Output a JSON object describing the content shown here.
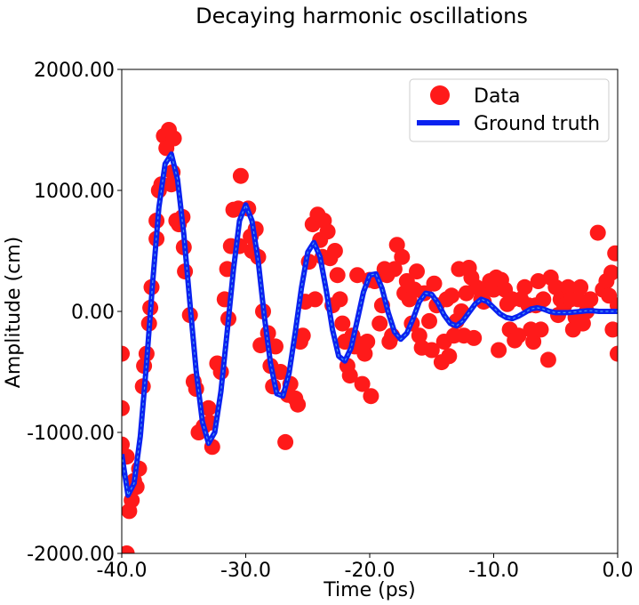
{
  "chart_data": {
    "type": "scatter",
    "title": "Decaying harmonic oscillations",
    "xlabel": "Time (ps)",
    "ylabel": "Amplitude (cm)",
    "xlim": [
      -40,
      0
    ],
    "ylim": [
      -2000,
      2000
    ],
    "xticks": [
      -40,
      -30,
      -20,
      -10,
      0
    ],
    "xtick_labels": [
      "-40.0",
      "-30.0",
      "-20.0",
      "-10.0",
      "0.0"
    ],
    "yticks": [
      -2000,
      -1000,
      0,
      1000,
      2000
    ],
    "ytick_labels": [
      "-2000.00",
      "-1000.00",
      "0.00",
      "1000.00",
      "2000.00"
    ],
    "legend_position": "top-right",
    "colors": {
      "data": "#ff1a1a",
      "ground_truth": "#0a22f0",
      "ground_truth_inner": "#4a9cf0"
    },
    "series": [
      {
        "name": "Data",
        "kind": "markers",
        "points": [
          [
            -40.0,
            -350
          ],
          [
            -40.0,
            -800
          ],
          [
            -40.0,
            -1100
          ],
          [
            -39.6,
            -1200
          ],
          [
            -39.6,
            -2000
          ],
          [
            -39.4,
            -1650
          ],
          [
            -39.2,
            -1560
          ],
          [
            -39.0,
            -1400
          ],
          [
            -38.8,
            -1450
          ],
          [
            -38.6,
            -1300
          ],
          [
            -38.3,
            -620
          ],
          [
            -38.2,
            -450
          ],
          [
            -38.0,
            -350
          ],
          [
            -37.8,
            -100
          ],
          [
            -37.7,
            30
          ],
          [
            -37.6,
            200
          ],
          [
            -37.2,
            600
          ],
          [
            -37.2,
            750
          ],
          [
            -37.0,
            1000
          ],
          [
            -36.8,
            1050
          ],
          [
            -36.6,
            1450
          ],
          [
            -36.4,
            1350
          ],
          [
            -36.2,
            1500
          ],
          [
            -36.0,
            1050
          ],
          [
            -35.8,
            1430
          ],
          [
            -35.9,
            1150
          ],
          [
            -35.6,
            750
          ],
          [
            -35.4,
            720
          ],
          [
            -35.1,
            780
          ],
          [
            -35.0,
            530
          ],
          [
            -34.9,
            330
          ],
          [
            -34.5,
            -30
          ],
          [
            -34.2,
            -580
          ],
          [
            -34.0,
            -640
          ],
          [
            -33.8,
            -1000
          ],
          [
            -33.4,
            -950
          ],
          [
            -33.0,
            -800
          ],
          [
            -32.9,
            -920
          ],
          [
            -32.7,
            -1120
          ],
          [
            -32.3,
            -430
          ],
          [
            -32.0,
            -500
          ],
          [
            -31.7,
            100
          ],
          [
            -31.5,
            350
          ],
          [
            -31.4,
            -60
          ],
          [
            -31.2,
            540
          ],
          [
            -31.0,
            840
          ],
          [
            -30.6,
            850
          ],
          [
            -30.5,
            540
          ],
          [
            -30.4,
            1120
          ],
          [
            -29.8,
            850
          ],
          [
            -29.6,
            620
          ],
          [
            -29.5,
            500
          ],
          [
            -29.2,
            680
          ],
          [
            -29.0,
            450
          ],
          [
            -28.8,
            -280
          ],
          [
            -28.6,
            0
          ],
          [
            -28.2,
            -180
          ],
          [
            -28.0,
            -450
          ],
          [
            -27.8,
            -620
          ],
          [
            -27.6,
            -290
          ],
          [
            -27.2,
            -500
          ],
          [
            -26.8,
            -1080
          ],
          [
            -26.6,
            -690
          ],
          [
            -26.4,
            -600
          ],
          [
            -26.0,
            -720
          ],
          [
            -25.8,
            -770
          ],
          [
            -25.6,
            -250
          ],
          [
            -25.4,
            -200
          ],
          [
            -25.2,
            80
          ],
          [
            -24.9,
            410
          ],
          [
            -24.6,
            720
          ],
          [
            -24.4,
            100
          ],
          [
            -24.2,
            800
          ],
          [
            -24.0,
            590
          ],
          [
            -23.8,
            450
          ],
          [
            -23.7,
            750
          ],
          [
            -23.4,
            660
          ],
          [
            -23.2,
            440
          ],
          [
            -23.0,
            50
          ],
          [
            -22.8,
            500
          ],
          [
            -22.6,
            300
          ],
          [
            -22.4,
            100
          ],
          [
            -22.2,
            -100
          ],
          [
            -22.0,
            -250
          ],
          [
            -21.8,
            -450
          ],
          [
            -21.6,
            -530
          ],
          [
            -21.4,
            -200
          ],
          [
            -21.2,
            -290
          ],
          [
            -21.0,
            300
          ],
          [
            -20.8,
            -270
          ],
          [
            -20.6,
            -600
          ],
          [
            -20.4,
            -350
          ],
          [
            -20.2,
            -250
          ],
          [
            -20.0,
            260
          ],
          [
            -19.9,
            -700
          ],
          [
            -19.6,
            250
          ],
          [
            -19.2,
            -100
          ],
          [
            -19.0,
            50
          ],
          [
            -18.8,
            350
          ],
          [
            -18.6,
            300
          ],
          [
            -18.4,
            -250
          ],
          [
            -18.2,
            -200
          ],
          [
            -18.0,
            350
          ],
          [
            -17.8,
            550
          ],
          [
            -17.4,
            450
          ],
          [
            -17.2,
            150
          ],
          [
            -17.0,
            250
          ],
          [
            -16.8,
            100
          ],
          [
            -16.6,
            -100
          ],
          [
            -16.4,
            180
          ],
          [
            -16.2,
            330
          ],
          [
            -16.0,
            -200
          ],
          [
            -15.8,
            -300
          ],
          [
            -15.6,
            150
          ],
          [
            -15.2,
            -80
          ],
          [
            -15.0,
            -320
          ],
          [
            -14.8,
            230
          ],
          [
            -14.6,
            50
          ],
          [
            -14.2,
            -420
          ],
          [
            -14.0,
            -250
          ],
          [
            -13.8,
            100
          ],
          [
            -13.6,
            -370
          ],
          [
            -13.4,
            130
          ],
          [
            -13.2,
            -200
          ],
          [
            -13.0,
            -80
          ],
          [
            -12.8,
            350
          ],
          [
            -12.6,
            0
          ],
          [
            -12.4,
            -200
          ],
          [
            -12.2,
            150
          ],
          [
            -12.0,
            360
          ],
          [
            -11.8,
            280
          ],
          [
            -11.6,
            -220
          ],
          [
            -11.4,
            200
          ],
          [
            -11.0,
            100
          ],
          [
            -10.8,
            80
          ],
          [
            -10.5,
            200
          ],
          [
            -10.3,
            250
          ],
          [
            -10.0,
            180
          ],
          [
            -9.8,
            280
          ],
          [
            -9.6,
            -320
          ],
          [
            -9.4,
            260
          ],
          [
            -9.1,
            180
          ],
          [
            -8.9,
            60
          ],
          [
            -8.7,
            -150
          ],
          [
            -8.5,
            100
          ],
          [
            -8.3,
            -240
          ],
          [
            -8.0,
            -200
          ],
          [
            -7.8,
            100
          ],
          [
            -7.5,
            200
          ],
          [
            -7.2,
            50
          ],
          [
            -7.0,
            -150
          ],
          [
            -6.8,
            -250
          ],
          [
            -6.6,
            50
          ],
          [
            -6.4,
            250
          ],
          [
            -6.2,
            -150
          ],
          [
            -6.0,
            100
          ],
          [
            -5.6,
            -400
          ],
          [
            -5.4,
            280
          ],
          [
            -5.0,
            200
          ],
          [
            -4.8,
            -30
          ],
          [
            -4.6,
            100
          ],
          [
            -4.3,
            50
          ],
          [
            -4.0,
            200
          ],
          [
            -3.8,
            100
          ],
          [
            -3.6,
            -150
          ],
          [
            -3.4,
            -50
          ],
          [
            -3.2,
            100
          ],
          [
            -3.0,
            200
          ],
          [
            -2.8,
            -100
          ],
          [
            -2.5,
            0
          ],
          [
            -2.2,
            100
          ],
          [
            -1.6,
            650
          ],
          [
            -1.2,
            180
          ],
          [
            -0.9,
            250
          ],
          [
            -0.7,
            130
          ],
          [
            -0.5,
            320
          ],
          [
            -0.4,
            -150
          ],
          [
            -0.2,
            480
          ],
          [
            0.0,
            -350
          ],
          [
            0.0,
            50
          ]
        ]
      },
      {
        "name": "Ground truth",
        "kind": "line",
        "x": [
          -40.0,
          -39.5,
          -39.0,
          -38.5,
          -38.0,
          -37.5,
          -37.0,
          -36.5,
          -36.0,
          -35.5,
          -35.0,
          -34.5,
          -34.0,
          -33.5,
          -33.0,
          -32.5,
          -32.0,
          -31.5,
          -31.0,
          -30.5,
          -30.0,
          -29.5,
          -29.0,
          -28.5,
          -28.0,
          -27.5,
          -27.0,
          -26.5,
          -26.0,
          -25.5,
          -25.0,
          -24.5,
          -24.0,
          -23.5,
          -23.0,
          -22.5,
          -22.0,
          -21.5,
          -21.0,
          -20.5,
          -20.0,
          -19.5,
          -19.0,
          -18.5,
          -18.0,
          -17.5,
          -17.0,
          -16.5,
          -16.0,
          -15.5,
          -15.0,
          -14.5,
          -14.0,
          -13.5,
          -13.0,
          -12.5,
          -12.0,
          -11.5,
          -11.0,
          -10.5,
          -10.0,
          -9.5,
          -9.0,
          -8.5,
          -8.0,
          -7.5,
          -7.0,
          -6.5,
          -6.0,
          -5.5,
          -5.0,
          -4.5,
          -4.0,
          -3.5,
          -3.0,
          -2.5,
          -2.0,
          -1.5,
          -1.0,
          -0.5,
          0.0
        ],
        "y": [
          -1180,
          -1520,
          -1420,
          -1030,
          -430,
          250,
          860,
          1220,
          1300,
          1090,
          640,
          70,
          -490,
          -910,
          -1090,
          -1000,
          -660,
          -170,
          340,
          750,
          880,
          750,
          420,
          -40,
          -430,
          -680,
          -700,
          -510,
          -170,
          200,
          490,
          570,
          450,
          170,
          -150,
          -370,
          -410,
          -300,
          -70,
          160,
          300,
          310,
          190,
          -10,
          -170,
          -230,
          -180,
          -60,
          80,
          150,
          140,
          70,
          -30,
          -100,
          -120,
          -80,
          -10,
          60,
          100,
          80,
          30,
          -20,
          -50,
          -60,
          -40,
          -10,
          20,
          30,
          20,
          0,
          -10,
          -10,
          -10,
          -5,
          0,
          5,
          5,
          0,
          0,
          0,
          0
        ]
      }
    ]
  }
}
